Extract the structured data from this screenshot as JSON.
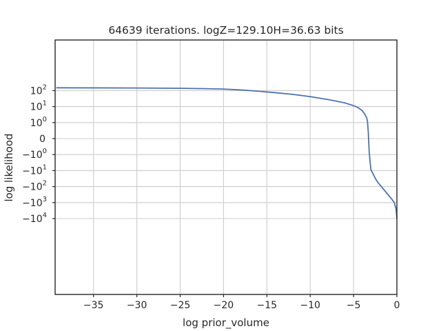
{
  "chart_data": {
    "type": "line",
    "title": "64639 iterations. logZ=129.10H=36.63 bits",
    "xlabel": "log prior_volume",
    "ylabel": "log likelihood",
    "xlim": [
      -39.3,
      0
    ],
    "yscale": "symlog",
    "grid": true,
    "x_ticks": [
      {
        "value": -35,
        "label": "−35"
      },
      {
        "value": -30,
        "label": "−30"
      },
      {
        "value": -25,
        "label": "−25"
      },
      {
        "value": -20,
        "label": "−20"
      },
      {
        "value": -15,
        "label": "−15"
      },
      {
        "value": -10,
        "label": "−10"
      },
      {
        "value": -5,
        "label": "−5"
      },
      {
        "value": 0,
        "label": "0"
      }
    ],
    "y_ticks": [
      {
        "value": 100,
        "base": "10",
        "exp": "2",
        "sign": ""
      },
      {
        "value": 10,
        "base": "10",
        "exp": "1",
        "sign": ""
      },
      {
        "value": 1,
        "base": "10",
        "exp": "0",
        "sign": ""
      },
      {
        "value": 0,
        "base": "0",
        "exp": "",
        "sign": ""
      },
      {
        "value": -1,
        "base": "10",
        "exp": "0",
        "sign": "−"
      },
      {
        "value": -10,
        "base": "10",
        "exp": "1",
        "sign": "−"
      },
      {
        "value": -100,
        "base": "10",
        "exp": "2",
        "sign": "−"
      },
      {
        "value": -1000,
        "base": "10",
        "exp": "3",
        "sign": "−"
      },
      {
        "value": -10000,
        "base": "10",
        "exp": "4",
        "sign": "−"
      }
    ],
    "series": [
      {
        "color": "#4c72b0",
        "x": [
          -39.3,
          -35,
          -30,
          -25,
          -22,
          -20,
          -18,
          -16,
          -14,
          -12,
          -10,
          -8,
          -7,
          -6,
          -5,
          -4.5,
          -4,
          -3.7,
          -3.5,
          -3.4,
          -3.3,
          -3.2,
          -3.1,
          -3.0,
          -2.8,
          -2.5,
          -2.2,
          -1.8,
          -1.4,
          -1.0,
          -0.6,
          -0.3,
          -0.1,
          0
        ],
        "y": [
          150,
          148,
          145,
          140,
          132,
          125,
          110,
          92,
          74,
          58,
          42,
          28,
          22,
          17,
          11.5,
          8.8,
          5.6,
          3.3,
          2.1,
          1.3,
          0.4,
          -0.8,
          -2.5,
          -9,
          -14,
          -30,
          -55,
          -100,
          -180,
          -330,
          -600,
          -1000,
          -2500,
          -10000
        ]
      }
    ]
  }
}
